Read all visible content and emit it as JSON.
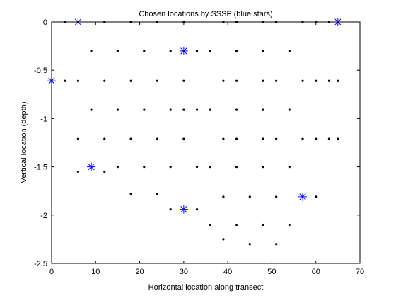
{
  "chart_data": {
    "type": "scatter",
    "title": "Chosen locations by SSSP (blue stars)",
    "xlabel": "Horizontal location along transect",
    "ylabel": "Vertical location (depth)",
    "xlim": [
      0,
      70
    ],
    "ylim": [
      -2.5,
      0
    ],
    "xticks": [
      0,
      10,
      20,
      30,
      40,
      50,
      60,
      70
    ],
    "yticks": [
      0,
      -0.5,
      -1,
      -1.5,
      -2,
      -2.5
    ],
    "xtick_labels": [
      "0",
      "10",
      "20",
      "30",
      "40",
      "50",
      "60",
      "70"
    ],
    "ytick_labels": [
      "0",
      "-0.5",
      "-1",
      "-1.5",
      "-2",
      "-2.5"
    ],
    "grid": false,
    "series": [
      {
        "marker": "dot",
        "color": "#000000",
        "points": [
          [
            3,
            0
          ],
          [
            6,
            0
          ],
          [
            12,
            0
          ],
          [
            18,
            0
          ],
          [
            24,
            0
          ],
          [
            30,
            0
          ],
          [
            39,
            0
          ],
          [
            42,
            0
          ],
          [
            48,
            0
          ],
          [
            51,
            0
          ],
          [
            57,
            0
          ],
          [
            60,
            0
          ],
          [
            63,
            0
          ],
          [
            9,
            -0.3
          ],
          [
            15,
            -0.3
          ],
          [
            21,
            -0.3
          ],
          [
            27,
            -0.3
          ],
          [
            33,
            -0.3
          ],
          [
            36,
            -0.3
          ],
          [
            42,
            -0.3
          ],
          [
            48,
            -0.3
          ],
          [
            54,
            -0.3
          ],
          [
            3,
            -0.61
          ],
          [
            6,
            -0.61
          ],
          [
            12,
            -0.61
          ],
          [
            18,
            -0.61
          ],
          [
            24,
            -0.61
          ],
          [
            30,
            -0.61
          ],
          [
            39,
            -0.61
          ],
          [
            42,
            -0.61
          ],
          [
            48,
            -0.61
          ],
          [
            51,
            -0.61
          ],
          [
            57,
            -0.61
          ],
          [
            60,
            -0.61
          ],
          [
            63,
            -0.61
          ],
          [
            65,
            -0.61
          ],
          [
            9,
            -0.91
          ],
          [
            15,
            -0.91
          ],
          [
            21,
            -0.91
          ],
          [
            27,
            -0.91
          ],
          [
            30,
            -0.91
          ],
          [
            33,
            -0.91
          ],
          [
            36,
            -0.91
          ],
          [
            42,
            -0.91
          ],
          [
            48,
            -0.91
          ],
          [
            54,
            -0.91
          ],
          [
            6,
            -1.21
          ],
          [
            12,
            -1.21
          ],
          [
            18,
            -1.21
          ],
          [
            24,
            -1.21
          ],
          [
            30,
            -1.21
          ],
          [
            39,
            -1.21
          ],
          [
            42,
            -1.21
          ],
          [
            48,
            -1.21
          ],
          [
            51,
            -1.21
          ],
          [
            57,
            -1.21
          ],
          [
            60,
            -1.21
          ],
          [
            63,
            -1.21
          ],
          [
            65,
            -1.21
          ],
          [
            6,
            -1.55
          ],
          [
            12,
            -1.55
          ],
          [
            15,
            -1.5
          ],
          [
            21,
            -1.5
          ],
          [
            27,
            -1.5
          ],
          [
            33,
            -1.5
          ],
          [
            36,
            -1.5
          ],
          [
            42,
            -1.5
          ],
          [
            48,
            -1.5
          ],
          [
            54,
            -1.5
          ],
          [
            18,
            -1.78
          ],
          [
            24,
            -1.78
          ],
          [
            39,
            -1.81
          ],
          [
            45,
            -1.81
          ],
          [
            51,
            -1.81
          ],
          [
            60,
            -1.81
          ],
          [
            27,
            -1.94
          ],
          [
            33,
            -1.94
          ],
          [
            36,
            -2.1
          ],
          [
            42,
            -2.1
          ],
          [
            48,
            -2.1
          ],
          [
            54,
            -2.1
          ],
          [
            39,
            -2.25
          ],
          [
            45,
            -2.3
          ],
          [
            51,
            -2.3
          ]
        ]
      },
      {
        "marker": "star",
        "color": "#0000ff",
        "points": [
          [
            6,
            0
          ],
          [
            65,
            0
          ],
          [
            30,
            -0.3
          ],
          [
            0,
            -0.61
          ],
          [
            9,
            -1.5
          ],
          [
            57,
            -1.81
          ],
          [
            30,
            -1.94
          ]
        ]
      }
    ]
  }
}
